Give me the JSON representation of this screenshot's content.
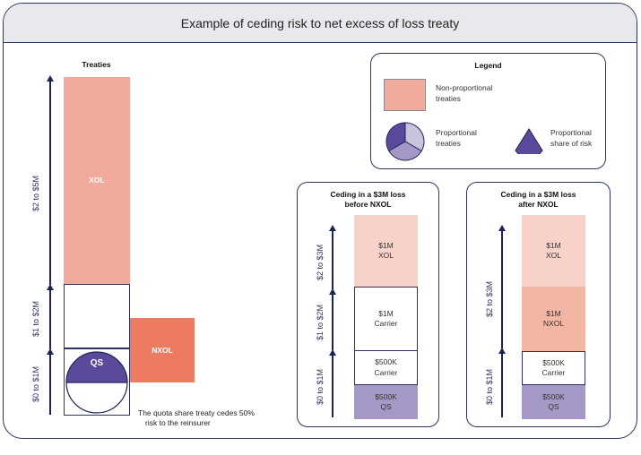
{
  "title": "Example of ceding risk to net excess of loss treaty",
  "treaties": {
    "heading": "Treaties",
    "xol_label": "XOL",
    "nxol_label": "NXOL",
    "qs_label": "QS",
    "note_line1": "The quota share treaty cedes 50%",
    "note_line2": "risk to the reinsurer",
    "axis_labels": [
      "$2 to $5M",
      "$1 to $2M",
      "$0 to $1M"
    ]
  },
  "legend": {
    "heading": "Legend",
    "non_proportional_line1": "Non-proportional",
    "non_proportional_line2": "treaties",
    "proportional_line1": "Proportional",
    "proportional_line2": "treaties",
    "share_line1": "Proportional",
    "share_line2": "share of risk"
  },
  "before_panel": {
    "title_line1": "Ceding in a $3M loss",
    "title_line2": "before NXOL",
    "axis_labels": [
      "$2 to $3M",
      "$1 to $2M",
      "$0 to $1M"
    ],
    "boxes": [
      {
        "line1": "$1M",
        "line2": "XOL"
      },
      {
        "line1": "$1M",
        "line2": "Carrier"
      },
      {
        "line1": "$500K",
        "line2": "Carrier"
      },
      {
        "line1": "$500K",
        "line2": "QS"
      }
    ]
  },
  "after_panel": {
    "title_line1": "Ceding in a $3M loss",
    "title_line2": "after NXOL",
    "axis_labels": [
      "$2 to $3M",
      "$1 to $2M",
      "$0 to $1M"
    ],
    "boxes": [
      {
        "line1": "$1M",
        "line2": "XOL"
      },
      {
        "line1": "$1M",
        "line2": "NXOL"
      },
      {
        "line1": "$500K",
        "line2": "Carrier"
      },
      {
        "line1": "$500K",
        "line2": "QS"
      }
    ]
  },
  "colors": {
    "xol": "#f2aa9c",
    "nxol": "#ec7b62",
    "qs": "#5b4a9b",
    "qs_light": "#a598c6",
    "xol_light": "#f8d2c9",
    "nxol_mid": "#f3b6a4",
    "border": "#2c3360"
  }
}
